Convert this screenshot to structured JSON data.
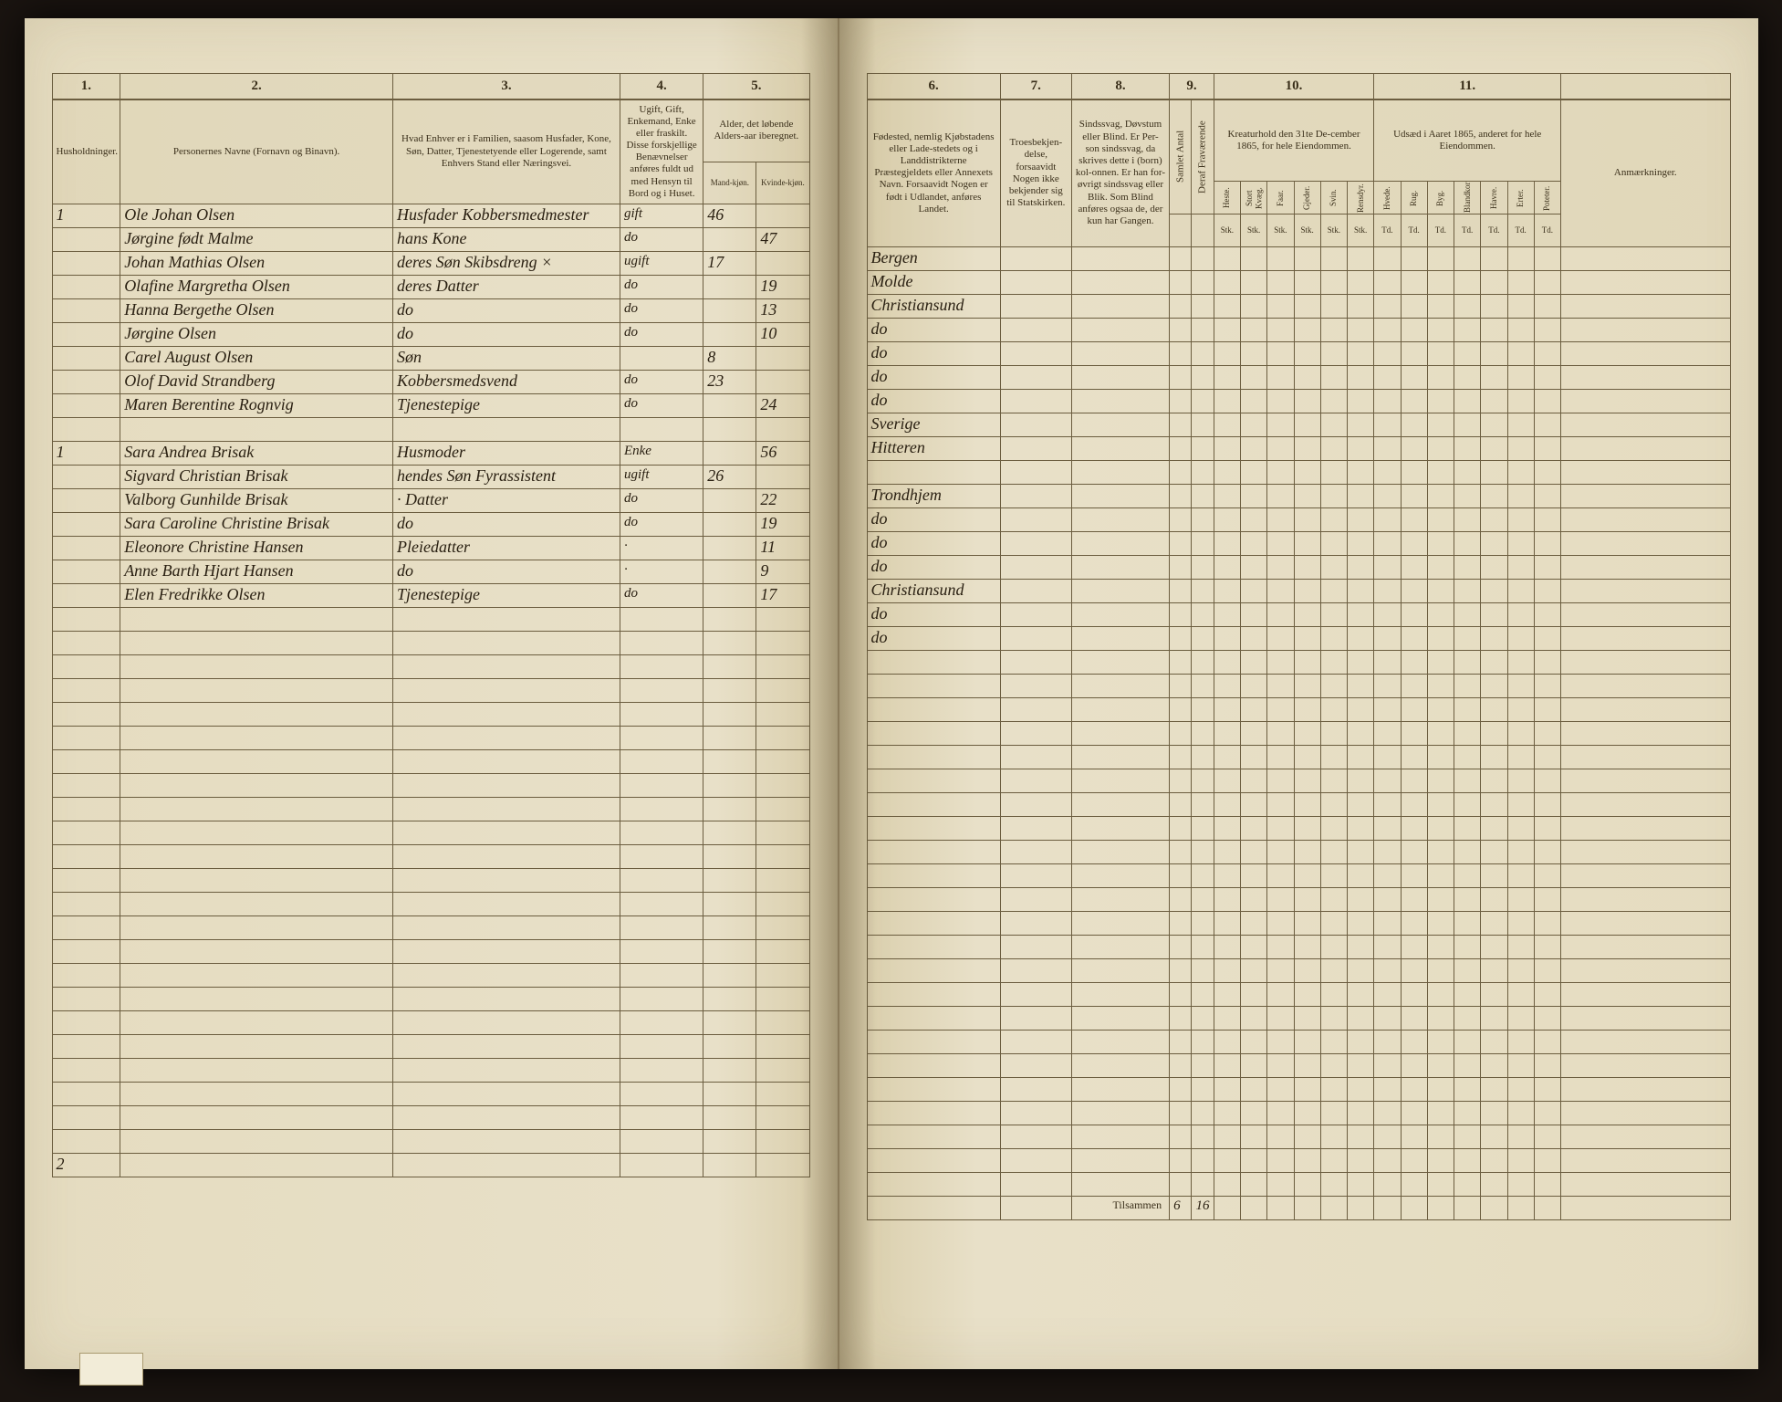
{
  "document": {
    "type": "census_ledger",
    "year_text": "1865",
    "footer_label": "Tilsammen"
  },
  "left_headers": {
    "col1_num": "1.",
    "col2_num": "2.",
    "col3_num": "3.",
    "col4_num": "4.",
    "col5_num": "5.",
    "col1": "Husholdninger.",
    "col2": "Personernes Navne (Fornavn og Binavn).",
    "col3": "Hvad Enhver er i Familien, saasom Husfader, Kone, Søn, Datter, Tjenestetyende eller Logerende, samt Enhvers Stand eller Næringsvei.",
    "col4": "Ugift, Gift, Enkemand, Enke eller fraskilt. Disse forskjellige Benævnelser anføres fuldt ud med Hensyn til Bord og i Huset.",
    "col5": "Alder, det løbende Alders-aar iberegnet.",
    "col5a": "Mand-kjøn.",
    "col5b": "Kvinde-kjøn."
  },
  "right_headers": {
    "col6_num": "6.",
    "col7_num": "7.",
    "col8_num": "8.",
    "col9_num": "9.",
    "col10_num": "10.",
    "col11_num": "11.",
    "col6": "Fødested, nemlig Kjøbstadens eller Lade-stedets og i Landdistrikterne Præstegjeldets eller Annexets Navn. Forsaavidt Nogen er født i Udlandet, anføres Landet.",
    "col7": "Troesbekjen-delse, forsaavidt Nogen ikke bekjender sig til Statskirken.",
    "col8": "Sindssvag, Døvstum eller Blind. Er Per-son sindssvag, da skrives dette i (born) kol-onnen. Er han for-øvrigt sindssvag eller Blik. Som Blind anføres ogsaa de, der kun har Gangen.",
    "col9_a": "Samlet Antal",
    "col9_b": "Deraf Fraværende",
    "col10": "Kreaturhold den 31te De-cember 1865, for hele Eiendommen.",
    "col11": "Udsæd i Aaret 1865, anderet for hele Eiendommen.",
    "remarks": "Anmærkninger.",
    "col10_subs": [
      "Heste.",
      "Stort Kvæg.",
      "Faar.",
      "Gjeder.",
      "Svin.",
      "Rensdyr."
    ],
    "col10_units": [
      "Stk.",
      "Stk.",
      "Stk.",
      "Stk.",
      "Stk.",
      "Stk."
    ],
    "col11_subs": [
      "Hvede.",
      "Rug.",
      "Byg.",
      "Blandkorn.",
      "Havre.",
      "Erter.",
      "Poteter."
    ],
    "col11_units": [
      "Td.",
      "Td.",
      "Td.",
      "Td.",
      "Td.",
      "Td.",
      "Td."
    ]
  },
  "rows": [
    {
      "hh": "1",
      "name": "Ole Johan Olsen",
      "rel": "Husfader Kobbersmedmester",
      "stat": "gift",
      "m": "46",
      "f": "",
      "birth": "Bergen"
    },
    {
      "hh": "",
      "name": "Jørgine født Malme",
      "rel": "hans Kone",
      "stat": "do",
      "m": "",
      "f": "47",
      "birth": "Molde"
    },
    {
      "hh": "",
      "name": "Johan Mathias Olsen",
      "rel": "deres Søn  Skibsdreng  ×",
      "stat": "ugift",
      "m": "17",
      "f": "",
      "birth": "Christiansund"
    },
    {
      "hh": "",
      "name": "Olafine Margretha Olsen",
      "rel": "deres Datter",
      "stat": "do",
      "m": "",
      "f": "19",
      "birth": "do"
    },
    {
      "hh": "",
      "name": "Hanna Bergethe Olsen",
      "rel": "do",
      "stat": "do",
      "m": "",
      "f": "13",
      "birth": "do"
    },
    {
      "hh": "",
      "name": "Jørgine Olsen",
      "rel": "do",
      "stat": "do",
      "m": "",
      "f": "10",
      "birth": "do"
    },
    {
      "hh": "",
      "name": "Carel August Olsen",
      "rel": "Søn",
      "stat": "",
      "m": "8",
      "f": "",
      "birth": "do"
    },
    {
      "hh": "",
      "name": "Olof David Strandberg",
      "rel": "Kobbersmedsvend",
      "stat": "do",
      "m": "23",
      "f": "",
      "birth": "Sverige"
    },
    {
      "hh": "",
      "name": "Maren Berentine Rognvig",
      "rel": "Tjenestepige",
      "stat": "do",
      "m": "",
      "f": "24",
      "birth": "Hitteren"
    },
    {
      "hh": "",
      "name": "",
      "rel": "",
      "stat": "",
      "m": "",
      "f": "",
      "birth": ""
    },
    {
      "hh": "1",
      "name": "Sara Andrea Brisak",
      "rel": "Husmoder",
      "stat": "Enke",
      "m": "",
      "f": "56",
      "birth": "Trondhjem"
    },
    {
      "hh": "",
      "name": "Sigvard Christian Brisak",
      "rel": "hendes Søn  Fyrassistent",
      "stat": "ugift",
      "m": "26",
      "f": "",
      "birth": "do"
    },
    {
      "hh": "",
      "name": "Valborg Gunhilde Brisak",
      "rel": "·   Datter",
      "stat": "do",
      "m": "",
      "f": "22",
      "birth": "do"
    },
    {
      "hh": "",
      "name": "Sara Caroline Christine Brisak",
      "rel": "do",
      "stat": "do",
      "m": "",
      "f": "19",
      "birth": "do"
    },
    {
      "hh": "",
      "name": "Eleonore Christine Hansen",
      "rel": "Pleiedatter",
      "stat": "·",
      "m": "",
      "f": "11",
      "birth": "Christiansund"
    },
    {
      "hh": "",
      "name": "Anne Barth Hjart Hansen",
      "rel": "do",
      "stat": "·",
      "m": "",
      "f": "9",
      "birth": "do"
    },
    {
      "hh": "",
      "name": "Elen Fredrikke Olsen",
      "rel": "Tjenestepige",
      "stat": "do",
      "m": "",
      "f": "17",
      "birth": "do"
    }
  ],
  "totals": {
    "hh_total": "2",
    "col9a": "6",
    "col9b": "16"
  },
  "blank_rows_count": 23,
  "colors": {
    "paper": "#e8e0c8",
    "rule": "#6b5d3f",
    "ink": "#2a2012",
    "background": "#1a1410"
  }
}
